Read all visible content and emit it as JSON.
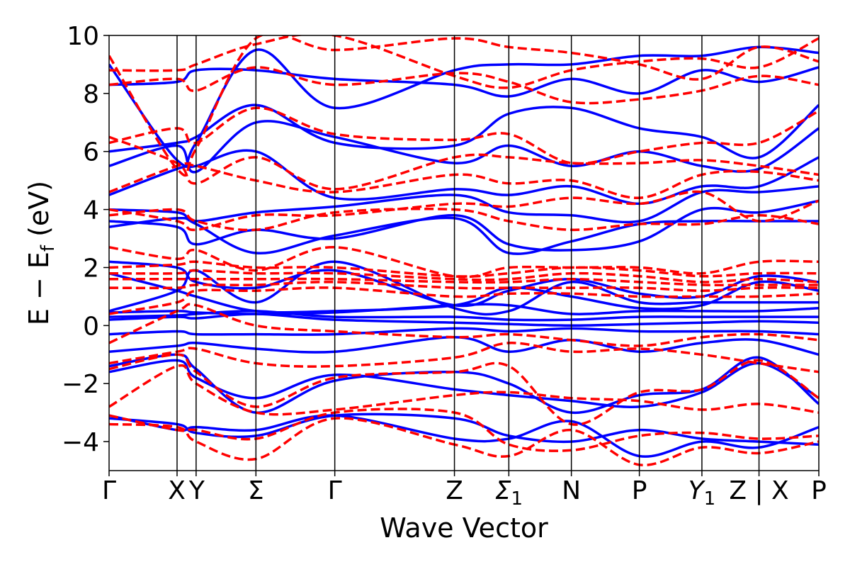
{
  "chart_data": {
    "type": "line",
    "title": "",
    "xlabel": "Wave Vector",
    "ylabel": "E − E_f (eV)",
    "ylabel_main": "E − E",
    "ylabel_sub": "f",
    "ylabel_unit": " (eV)",
    "ylim": [
      -5,
      10
    ],
    "xlim": [
      0,
      12
    ],
    "yticks": [
      -4,
      -2,
      0,
      2,
      4,
      6,
      8,
      10
    ],
    "ytick_labels": [
      "−4",
      "−2",
      "0",
      "2",
      "4",
      "6",
      "8",
      "10"
    ],
    "kpoints": [
      {
        "x": 0.0,
        "label": "Γ",
        "sub": ""
      },
      {
        "x": 1.25,
        "label": "X",
        "sub": ""
      },
      {
        "x": 1.6,
        "label": "Y",
        "sub": ""
      },
      {
        "x": 2.7,
        "label": "Σ",
        "sub": ""
      },
      {
        "x": 4.15,
        "label": "Γ",
        "sub": ""
      },
      {
        "x": 6.35,
        "label": "Z",
        "sub": ""
      },
      {
        "x": 7.35,
        "label": "Σ",
        "sub": "1"
      },
      {
        "x": 8.5,
        "label": "N",
        "sub": ""
      },
      {
        "x": 9.75,
        "label": "P",
        "sub": ""
      },
      {
        "x": 10.9,
        "label": "Y",
        "sub": "1"
      },
      {
        "x": 11.95,
        "label": "Z | X",
        "sub": ""
      },
      {
        "x": 13.05,
        "label": "P",
        "sub": ""
      }
    ],
    "series": [
      {
        "name": "solid",
        "color": "#0000ff",
        "style": "solid",
        "bands": [
          [
            -3.2,
            -3.4,
            -3.7,
            -3.8,
            -3.1,
            -3.2,
            -3.8,
            -4.0,
            -3.6,
            -3.9,
            -4.0,
            -4.1
          ],
          [
            -3.1,
            -3.6,
            -3.5,
            -3.6,
            -3.1,
            -3.9,
            -3.9,
            -3.3,
            -4.5,
            -4.0,
            -4.2,
            -3.5
          ],
          [
            -1.6,
            -1.2,
            -1.8,
            -2.5,
            -1.7,
            -2.2,
            -2.4,
            -2.6,
            -2.8,
            -2.3,
            -1.3,
            -2.5
          ],
          [
            -1.4,
            -1.0,
            -1.5,
            -3.0,
            -1.9,
            -1.6,
            -2.0,
            -3.0,
            -2.4,
            -2.2,
            -1.1,
            -2.7
          ],
          [
            -0.9,
            -0.7,
            -0.6,
            -0.8,
            -0.9,
            -0.4,
            -0.9,
            -0.5,
            -0.9,
            -0.6,
            -0.5,
            -1.0
          ],
          [
            -0.3,
            -0.2,
            -0.3,
            -0.3,
            -0.3,
            -0.1,
            -0.2,
            -0.1,
            -0.2,
            -0.2,
            -0.2,
            -0.3
          ],
          [
            0.2,
            0.3,
            0.25,
            0.4,
            0.2,
            0.1,
            0.05,
            0.0,
            0.05,
            0.1,
            0.15,
            0.1
          ],
          [
            0.3,
            0.35,
            0.4,
            0.5,
            0.3,
            0.3,
            0.2,
            0.2,
            0.3,
            0.3,
            0.3,
            0.3
          ],
          [
            0.45,
            0.5,
            0.45,
            0.4,
            0.45,
            0.7,
            0.7,
            0.4,
            0.5,
            0.5,
            0.5,
            0.6
          ],
          [
            0.5,
            1.2,
            1.9,
            0.8,
            2.2,
            0.6,
            0.5,
            1.5,
            0.8,
            0.8,
            0.8,
            0.8
          ],
          [
            1.8,
            1.2,
            1.0,
            0.5,
            0.5,
            0.7,
            1.3,
            1.0,
            0.6,
            0.7,
            1.5,
            1.2
          ],
          [
            2.2,
            2.0,
            1.5,
            1.3,
            1.9,
            0.7,
            1.2,
            1.6,
            1.1,
            1.0,
            1.7,
            1.5
          ],
          [
            3.4,
            3.7,
            3.5,
            2.5,
            3.1,
            3.7,
            2.5,
            2.9,
            3.5,
            3.6,
            3.6,
            3.6
          ],
          [
            3.6,
            3.4,
            2.8,
            3.3,
            3.0,
            3.8,
            2.8,
            2.6,
            2.9,
            4.0,
            3.9,
            4.3
          ],
          [
            4.0,
            3.9,
            3.6,
            3.9,
            4.1,
            4.5,
            3.9,
            3.8,
            3.6,
            4.6,
            4.6,
            4.8
          ],
          [
            4.5,
            5.4,
            5.5,
            6.0,
            4.4,
            4.7,
            4.5,
            4.8,
            4.2,
            4.8,
            4.8,
            5.8
          ],
          [
            5.5,
            6.2,
            5.3,
            7.0,
            6.5,
            5.6,
            6.2,
            5.5,
            6.0,
            5.5,
            5.4,
            6.8
          ],
          [
            6.0,
            6.3,
            6.5,
            7.6,
            6.3,
            6.2,
            7.3,
            7.5,
            6.8,
            6.5,
            5.8,
            7.6
          ],
          [
            8.3,
            8.4,
            8.8,
            8.8,
            8.5,
            8.3,
            7.9,
            8.5,
            8.0,
            8.8,
            8.4,
            8.9
          ],
          [
            9.0,
            5.7,
            6.3,
            9.5,
            7.5,
            8.8,
            9.0,
            9.0,
            9.3,
            9.3,
            9.6,
            9.4
          ]
        ]
      },
      {
        "name": "dashed",
        "color": "#ff0000",
        "style": "dashed",
        "bands": [
          [
            -3.1,
            -3.6,
            -3.6,
            -3.9,
            -3.0,
            -3.0,
            -4.1,
            -4.3,
            -3.8,
            -3.7,
            -3.9,
            -3.8
          ],
          [
            -3.4,
            -3.5,
            -4.0,
            -4.6,
            -3.2,
            -4.1,
            -4.5,
            -3.6,
            -4.8,
            -4.2,
            -4.4,
            -4.0
          ],
          [
            -2.8,
            -1.4,
            -2.0,
            -3.0,
            -2.9,
            -2.4,
            -2.3,
            -2.5,
            -2.6,
            -2.9,
            -2.7,
            -3.0
          ],
          [
            -1.5,
            -1.0,
            -1.6,
            -2.8,
            -1.8,
            -1.6,
            -1.4,
            -3.4,
            -2.3,
            -2.2,
            -1.2,
            -2.5
          ],
          [
            -1.3,
            -0.9,
            -0.8,
            -1.3,
            -1.4,
            -1.1,
            -0.6,
            -0.9,
            -0.8,
            -1.0,
            -1.3,
            -1.6
          ],
          [
            -0.6,
            0.5,
            0.7,
            0.0,
            -0.2,
            -0.4,
            -0.3,
            -0.5,
            -0.7,
            -0.4,
            -0.3,
            -0.5
          ],
          [
            0.4,
            0.8,
            1.2,
            1.2,
            1.3,
            1.0,
            1.1,
            1.1,
            1.0,
            1.0,
            1.0,
            1.1
          ],
          [
            1.3,
            1.3,
            1.4,
            1.4,
            1.5,
            1.3,
            1.3,
            1.3,
            1.3,
            1.2,
            1.3,
            1.3
          ],
          [
            1.6,
            1.6,
            1.6,
            1.6,
            1.6,
            1.5,
            1.5,
            1.6,
            1.5,
            1.4,
            1.4,
            1.4
          ],
          [
            1.8,
            1.8,
            1.9,
            1.8,
            1.8,
            1.6,
            1.6,
            1.8,
            1.7,
            1.5,
            1.6,
            1.5
          ],
          [
            2.0,
            2.1,
            2.2,
            2.0,
            2.0,
            1.7,
            1.8,
            2.0,
            1.9,
            1.7,
            1.8,
            1.8
          ],
          [
            2.7,
            2.3,
            2.6,
            1.9,
            2.7,
            1.7,
            2.0,
            2.0,
            2.0,
            1.8,
            2.2,
            2.2
          ],
          [
            3.8,
            4.0,
            3.6,
            3.3,
            3.9,
            4.0,
            3.6,
            3.3,
            3.5,
            3.5,
            3.8,
            3.5
          ],
          [
            4.0,
            3.6,
            3.3,
            3.8,
            3.8,
            4.2,
            4.1,
            4.4,
            4.2,
            4.6,
            3.6,
            4.3
          ],
          [
            4.6,
            5.5,
            5.5,
            5.0,
            4.6,
            5.2,
            4.9,
            5.0,
            4.4,
            5.2,
            5.3,
            5.0
          ],
          [
            6.5,
            5.6,
            4.9,
            5.8,
            4.7,
            5.8,
            5.8,
            5.6,
            5.6,
            5.7,
            5.5,
            5.2
          ],
          [
            6.3,
            6.8,
            6.3,
            7.5,
            6.6,
            6.4,
            6.6,
            5.6,
            6.0,
            6.3,
            6.3,
            7.4
          ],
          [
            8.3,
            8.5,
            8.1,
            8.9,
            8.3,
            8.7,
            8.4,
            7.7,
            7.8,
            8.1,
            8.6,
            8.3
          ],
          [
            9.3,
            5.4,
            6.1,
            9.9,
            9.5,
            9.9,
            9.6,
            9.4,
            9.0,
            8.5,
            9.6,
            9.1
          ],
          [
            8.8,
            8.8,
            9.0,
            9.7,
            10.0,
            8.6,
            8.2,
            8.8,
            9.1,
            9.2,
            8.9,
            9.9
          ]
        ]
      }
    ]
  }
}
